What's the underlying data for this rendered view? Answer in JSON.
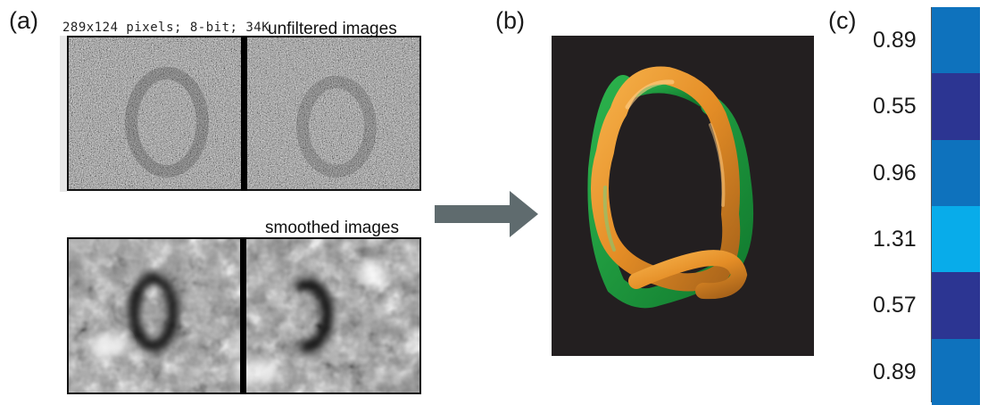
{
  "panels": {
    "a": {
      "label": "(a)",
      "info_caption": "289x124 pixels; 8-bit; 34K",
      "top_caption": "unfiltered images",
      "bottom_caption": "smoothed images"
    },
    "b": {
      "label": "(b)"
    },
    "c": {
      "label": "(c)",
      "values": [
        "0.89",
        "0.55",
        "0.96",
        "1.31",
        "0.57",
        "0.89"
      ],
      "colors": [
        "#0e72bd",
        "#2c3592",
        "#0e72bd",
        "#08acea",
        "#2c3592",
        "#0e72bd"
      ]
    }
  },
  "colors": {
    "arrow": "#5f6b6e",
    "rope_orange": "#e8952a",
    "rope_green": "#1a9a3c",
    "render_background": "#231f20"
  }
}
